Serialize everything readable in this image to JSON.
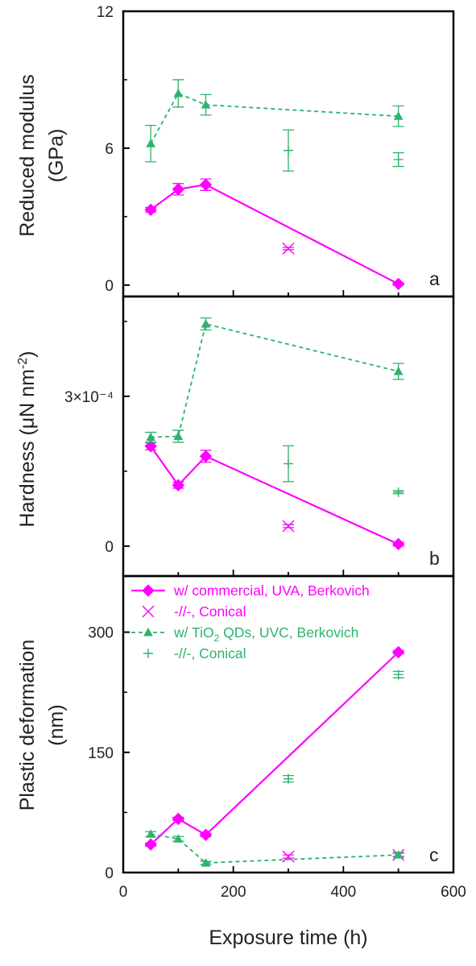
{
  "colors": {
    "magenta": "#ff00ff",
    "green": "#2db36b",
    "axis": "#000000"
  },
  "xaxis": {
    "label": "Exposure time (h)",
    "ticks": [
      "0",
      "200",
      "400",
      "600"
    ],
    "range": [
      0,
      600
    ]
  },
  "chart_data": [
    {
      "type": "line",
      "panel_letter": "a",
      "ylabel": "Reduced modulus (GPa)",
      "ylabel_lines": [
        "Reduced modulus",
        "(GPa)"
      ],
      "ylim": [
        -0.5,
        12
      ],
      "yticks": [
        0,
        6,
        12
      ],
      "ytick_labels": [
        "0",
        "6",
        "12"
      ],
      "series": [
        {
          "name": "w/ commercial, UVA, Berkovich",
          "color": "#ff00ff",
          "style": "solid",
          "marker": "diamond",
          "x": [
            50,
            100,
            150,
            500
          ],
          "y": [
            3.3,
            4.2,
            4.4,
            0.05
          ],
          "err": [
            0.1,
            0.25,
            0.25,
            0.05
          ]
        },
        {
          "name": "-//-, Conical",
          "color": "#ff00ff",
          "style": "none",
          "marker": "x",
          "x": [
            300
          ],
          "y": [
            1.6
          ],
          "err": [
            0.05
          ]
        },
        {
          "name": "w/ TiO2 QDs, UVC, Berkovich",
          "color": "#2db36b",
          "style": "dashed",
          "marker": "triangle",
          "x": [
            50,
            100,
            150,
            500
          ],
          "y": [
            6.2,
            8.4,
            7.9,
            7.4
          ],
          "err": [
            0.8,
            0.6,
            0.45,
            0.45
          ]
        },
        {
          "name": "-//-, Conical",
          "color": "#2db36b",
          "style": "none",
          "marker": "plus",
          "x": [
            300,
            500
          ],
          "y": [
            5.9,
            5.5
          ],
          "err": [
            0.9,
            0.3
          ]
        }
      ]
    },
    {
      "type": "line",
      "panel_letter": "b",
      "ylabel": "Hardness (μN nm⁻²)",
      "ylim": [
        -6e-05,
        0.0005
      ],
      "yticks": [
        0,
        0.0003
      ],
      "ytick_labels": [
        "0",
        "3×10⁻⁴"
      ],
      "series": [
        {
          "name": "w/ commercial, UVA, Berkovich",
          "color": "#ff00ff",
          "style": "solid",
          "marker": "diamond",
          "x": [
            50,
            100,
            150,
            500
          ],
          "y": [
            0.0002,
            0.000122,
            0.00018,
            4e-06
          ],
          "err": [
            7e-06,
            6e-06,
            1.2e-05,
            4e-06
          ]
        },
        {
          "name": "-//-, Conical",
          "color": "#ff00ff",
          "style": "none",
          "marker": "x",
          "x": [
            300
          ],
          "y": [
            4e-05
          ],
          "err": [
            3e-06
          ]
        },
        {
          "name": "w/ TiO2 QDs, UVC, Berkovich",
          "color": "#2db36b",
          "style": "dashed",
          "marker": "triangle",
          "x": [
            50,
            100,
            150,
            500
          ],
          "y": [
            0.000218,
            0.00022,
            0.000445,
            0.00035
          ],
          "err": [
            1e-05,
            1.2e-05,
            1.2e-05,
            1.6e-05
          ]
        },
        {
          "name": "-//-, Conical",
          "color": "#2db36b",
          "style": "none",
          "marker": "plus",
          "x": [
            300,
            500
          ],
          "y": [
            0.000165,
            0.000108
          ],
          "err": [
            3.6e-05,
            3e-06
          ]
        }
      ]
    },
    {
      "type": "line",
      "panel_letter": "c",
      "ylabel": "Plastic deformation (nm)",
      "ylabel_lines": [
        "Plastic deformation",
        "(nm)"
      ],
      "ylim": [
        0,
        370
      ],
      "yticks": [
        0,
        150,
        300
      ],
      "ytick_labels": [
        "0",
        "150",
        "300"
      ],
      "legend_position": "top",
      "series": [
        {
          "name": "w/ commercial, UVA, Berkovich",
          "color": "#ff00ff",
          "style": "solid",
          "marker": "diamond",
          "x": [
            50,
            100,
            150,
            500
          ],
          "y": [
            35,
            67,
            47,
            275
          ],
          "err": [
            2,
            2,
            2,
            2
          ]
        },
        {
          "name": "-//-, Conical",
          "color": "#ff00ff",
          "style": "none",
          "marker": "x",
          "x": [
            300,
            500
          ],
          "y": [
            20,
            22
          ],
          "err": [
            2,
            2
          ]
        },
        {
          "name": "w/ TiO2 QDs, UVC, Berkovich",
          "color": "#2db36b",
          "style": "dashed",
          "marker": "triangle",
          "x": [
            50,
            100,
            150,
            500
          ],
          "y": [
            48,
            42,
            12,
            22
          ],
          "err": [
            3,
            3,
            2,
            3
          ]
        },
        {
          "name": "-//-, Conical",
          "color": "#2db36b",
          "style": "none",
          "marker": "plus",
          "x": [
            300,
            500
          ],
          "y": [
            117,
            247
          ],
          "err": [
            4,
            4
          ]
        }
      ]
    }
  ],
  "legend": {
    "entries": [
      {
        "text": "w/ commercial, UVA, Berkovich",
        "sub": "",
        "rest": "",
        "color": "#ff00ff",
        "style": "solid",
        "marker": "diamond"
      },
      {
        "text": "-//-, Conical",
        "sub": "",
        "rest": "",
        "color": "#ff00ff",
        "style": "none",
        "marker": "x"
      },
      {
        "text": "w/ TiO",
        "sub": "2",
        "rest": " QDs, UVC, Berkovich",
        "color": "#2db36b",
        "style": "dashed",
        "marker": "triangle"
      },
      {
        "text": "-//-, Conical",
        "sub": "",
        "rest": "",
        "color": "#2db36b",
        "style": "none",
        "marker": "plus"
      }
    ]
  }
}
